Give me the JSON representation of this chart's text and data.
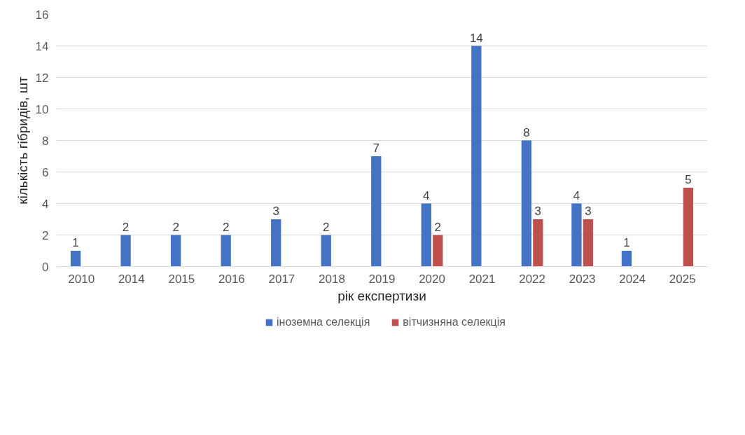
{
  "chart_data": {
    "type": "bar",
    "xlabel": "рік експертизи",
    "ylabel": "кількість гібридів, шт",
    "categories": [
      "2010",
      "2014",
      "2015",
      "2016",
      "2017",
      "2018",
      "2019",
      "2020",
      "2021",
      "2022",
      "2023",
      "2024",
      "2025"
    ],
    "series": [
      {
        "name": "іноземна селекція",
        "color": "#4472c4",
        "values": [
          1,
          2,
          2,
          2,
          3,
          2,
          7,
          4,
          14,
          8,
          4,
          1,
          null
        ]
      },
      {
        "name": "вітчизняна селекція",
        "color": "#c0504d",
        "values": [
          null,
          null,
          null,
          null,
          null,
          null,
          null,
          2,
          null,
          3,
          3,
          null,
          5
        ]
      }
    ],
    "ylim": [
      0,
      16
    ],
    "yticks": [
      0,
      2,
      4,
      6,
      8,
      10,
      12,
      14,
      16
    ],
    "grid": "y",
    "legend": "bottom",
    "data_labels": true
  }
}
